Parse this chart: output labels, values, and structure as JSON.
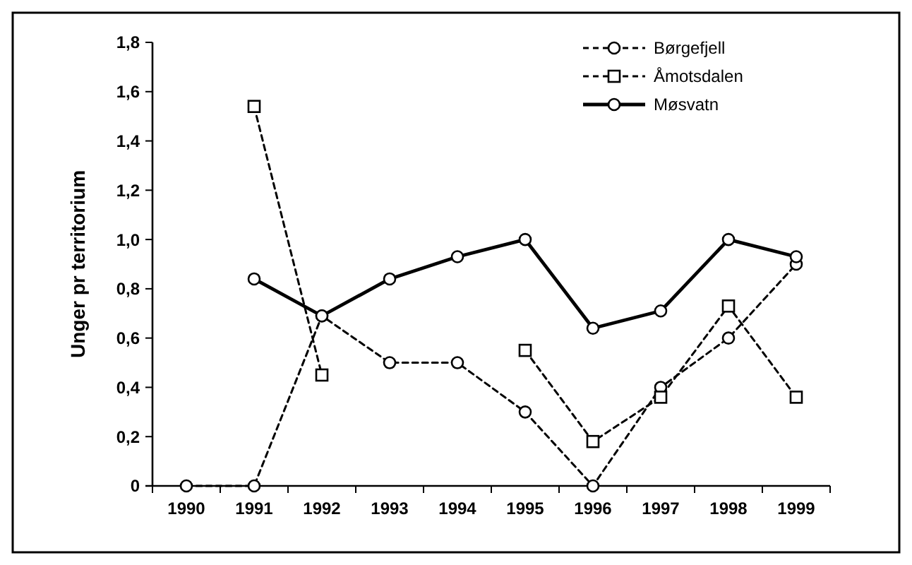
{
  "chart_data": {
    "type": "line",
    "ylabel": "Unger pr territorium",
    "categories": [
      "1990",
      "1991",
      "1992",
      "1993",
      "1994",
      "1995",
      "1996",
      "1997",
      "1998",
      "1999"
    ],
    "series": [
      {
        "name": "Børgefjell",
        "color": "#000000",
        "marker": "circle",
        "line_style": "dashed",
        "values": [
          0,
          0,
          0.69,
          0.5,
          0.5,
          0.3,
          0,
          0.4,
          0.6,
          0.9
        ]
      },
      {
        "name": "Åmotsdalen",
        "color": "#000000",
        "marker": "square",
        "line_style": "dashed",
        "values": [
          null,
          1.54,
          0.45,
          null,
          null,
          0.55,
          0.18,
          0.36,
          0.73,
          0.36
        ]
      },
      {
        "name": "Møsvatn",
        "color": "#000000",
        "marker": "circle",
        "line_style": "solid",
        "values": [
          null,
          0.84,
          0.69,
          0.84,
          0.93,
          1.0,
          0.64,
          0.71,
          1.0,
          0.93
        ]
      }
    ],
    "ylim": [
      0,
      1.8
    ],
    "yticks": [
      0,
      {
        "value": 0.2,
        "label": "0,2"
      },
      {
        "value": 0.4,
        "label": "0,4"
      },
      {
        "value": 0.6,
        "label": "0,6"
      },
      {
        "value": 0.8,
        "label": "0,8"
      },
      {
        "value": 1.0,
        "label": "1,0"
      },
      {
        "value": 1.2,
        "label": "1,2"
      },
      {
        "value": 1.4,
        "label": "1,4"
      },
      {
        "value": 1.6,
        "label": "1,6"
      },
      {
        "value": 1.8,
        "label": "1,8"
      }
    ],
    "grid": false,
    "legend": "top right"
  }
}
